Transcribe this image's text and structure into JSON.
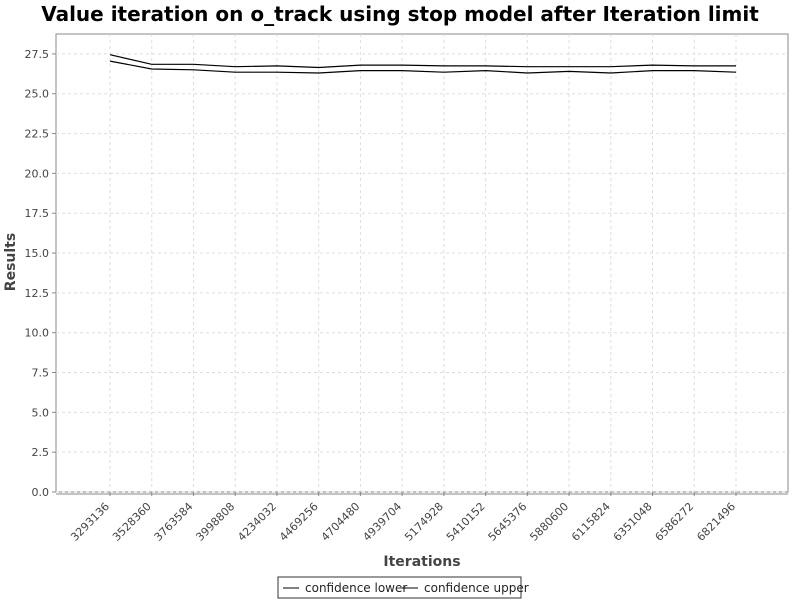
{
  "chart_data": {
    "type": "line",
    "title": "Value iteration on o_track using stop model after Iteration limit",
    "xlabel": "Iterations",
    "ylabel": "Results",
    "categories": [
      "3293136",
      "3528360",
      "3763584",
      "3998808",
      "4234032",
      "4469256",
      "4704480",
      "4939704",
      "5174928",
      "5410152",
      "5645376",
      "5880600",
      "6115824",
      "6351048",
      "6586272",
      "6821496"
    ],
    "series": [
      {
        "name": "confidence lower",
        "color": "#000000",
        "values": [
          27.05,
          26.55,
          26.5,
          26.35,
          26.35,
          26.3,
          26.45,
          26.45,
          26.35,
          26.45,
          26.3,
          26.4,
          26.3,
          26.45,
          26.45,
          26.35
        ]
      },
      {
        "name": "confidence upper",
        "color": "#000000",
        "values": [
          27.45,
          26.85,
          26.85,
          26.7,
          26.75,
          26.65,
          26.8,
          26.8,
          26.75,
          26.75,
          26.7,
          26.7,
          26.7,
          26.8,
          26.75,
          26.75
        ]
      }
    ],
    "y_ticks": [
      "0.0",
      "2.5",
      "5.0",
      "7.5",
      "10.0",
      "12.5",
      "15.0",
      "17.5",
      "20.0",
      "22.5",
      "25.0",
      "27.5"
    ],
    "ylim": [
      0,
      28.75
    ],
    "grid": true,
    "legend_position": "bottom-center"
  }
}
